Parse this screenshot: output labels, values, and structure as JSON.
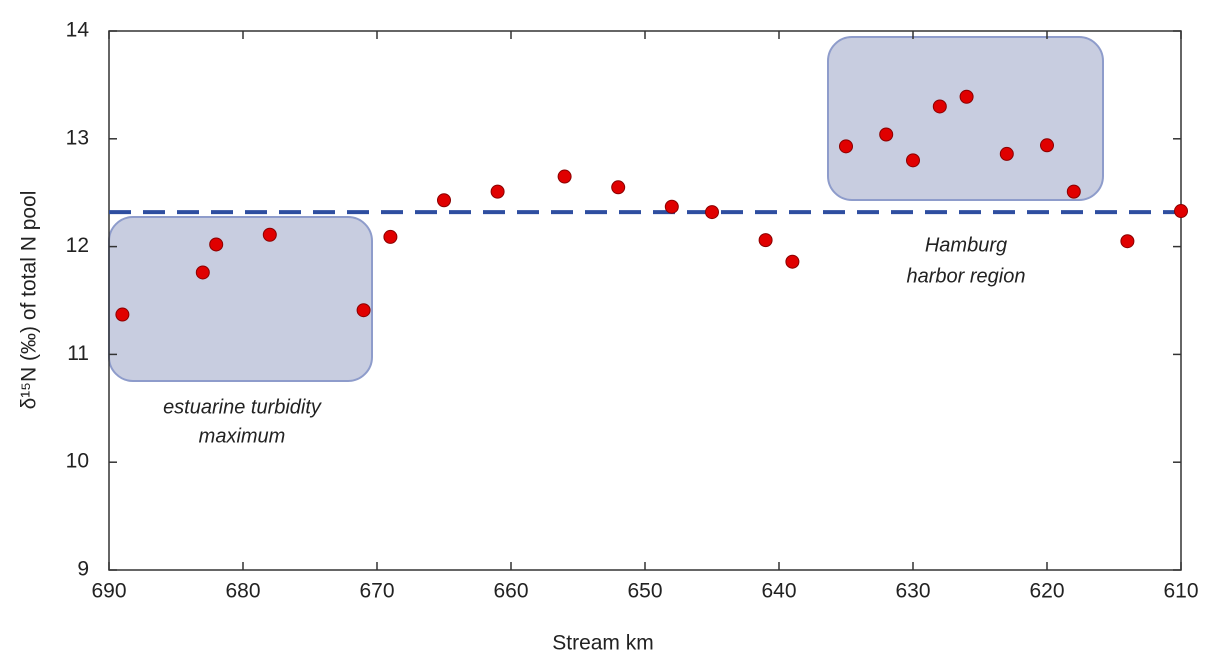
{
  "chart_data": {
    "type": "scatter",
    "xlabel": "Stream km",
    "ylabel": "δ¹⁵N (‰) of total N pool",
    "x": [
      689,
      683,
      682,
      678,
      671,
      669,
      665,
      661,
      656,
      652,
      648,
      645,
      641,
      639,
      635,
      632,
      630,
      628,
      626,
      623,
      620,
      618,
      614,
      610
    ],
    "values": [
      11.37,
      11.76,
      12.02,
      12.11,
      11.41,
      12.09,
      12.43,
      12.51,
      12.65,
      12.55,
      12.37,
      12.32,
      12.06,
      11.86,
      12.93,
      13.04,
      12.8,
      13.3,
      13.39,
      12.86,
      12.94,
      12.51,
      12.05,
      12.33
    ],
    "color": "#e00000",
    "hline": 12.32,
    "hline_color": "#2e4ea0",
    "xlim": [
      690,
      610
    ],
    "xticks": [
      690,
      680,
      670,
      660,
      650,
      640,
      630,
      620,
      610
    ],
    "ylim": [
      9,
      14
    ],
    "yticks": [
      9,
      10,
      11,
      12,
      13,
      14
    ],
    "annotations": [
      {
        "lines": [
          "estuarine turbidity",
          "maximum"
        ]
      },
      {
        "lines": [
          "Hamburg",
          "harbor region"
        ]
      }
    ]
  }
}
